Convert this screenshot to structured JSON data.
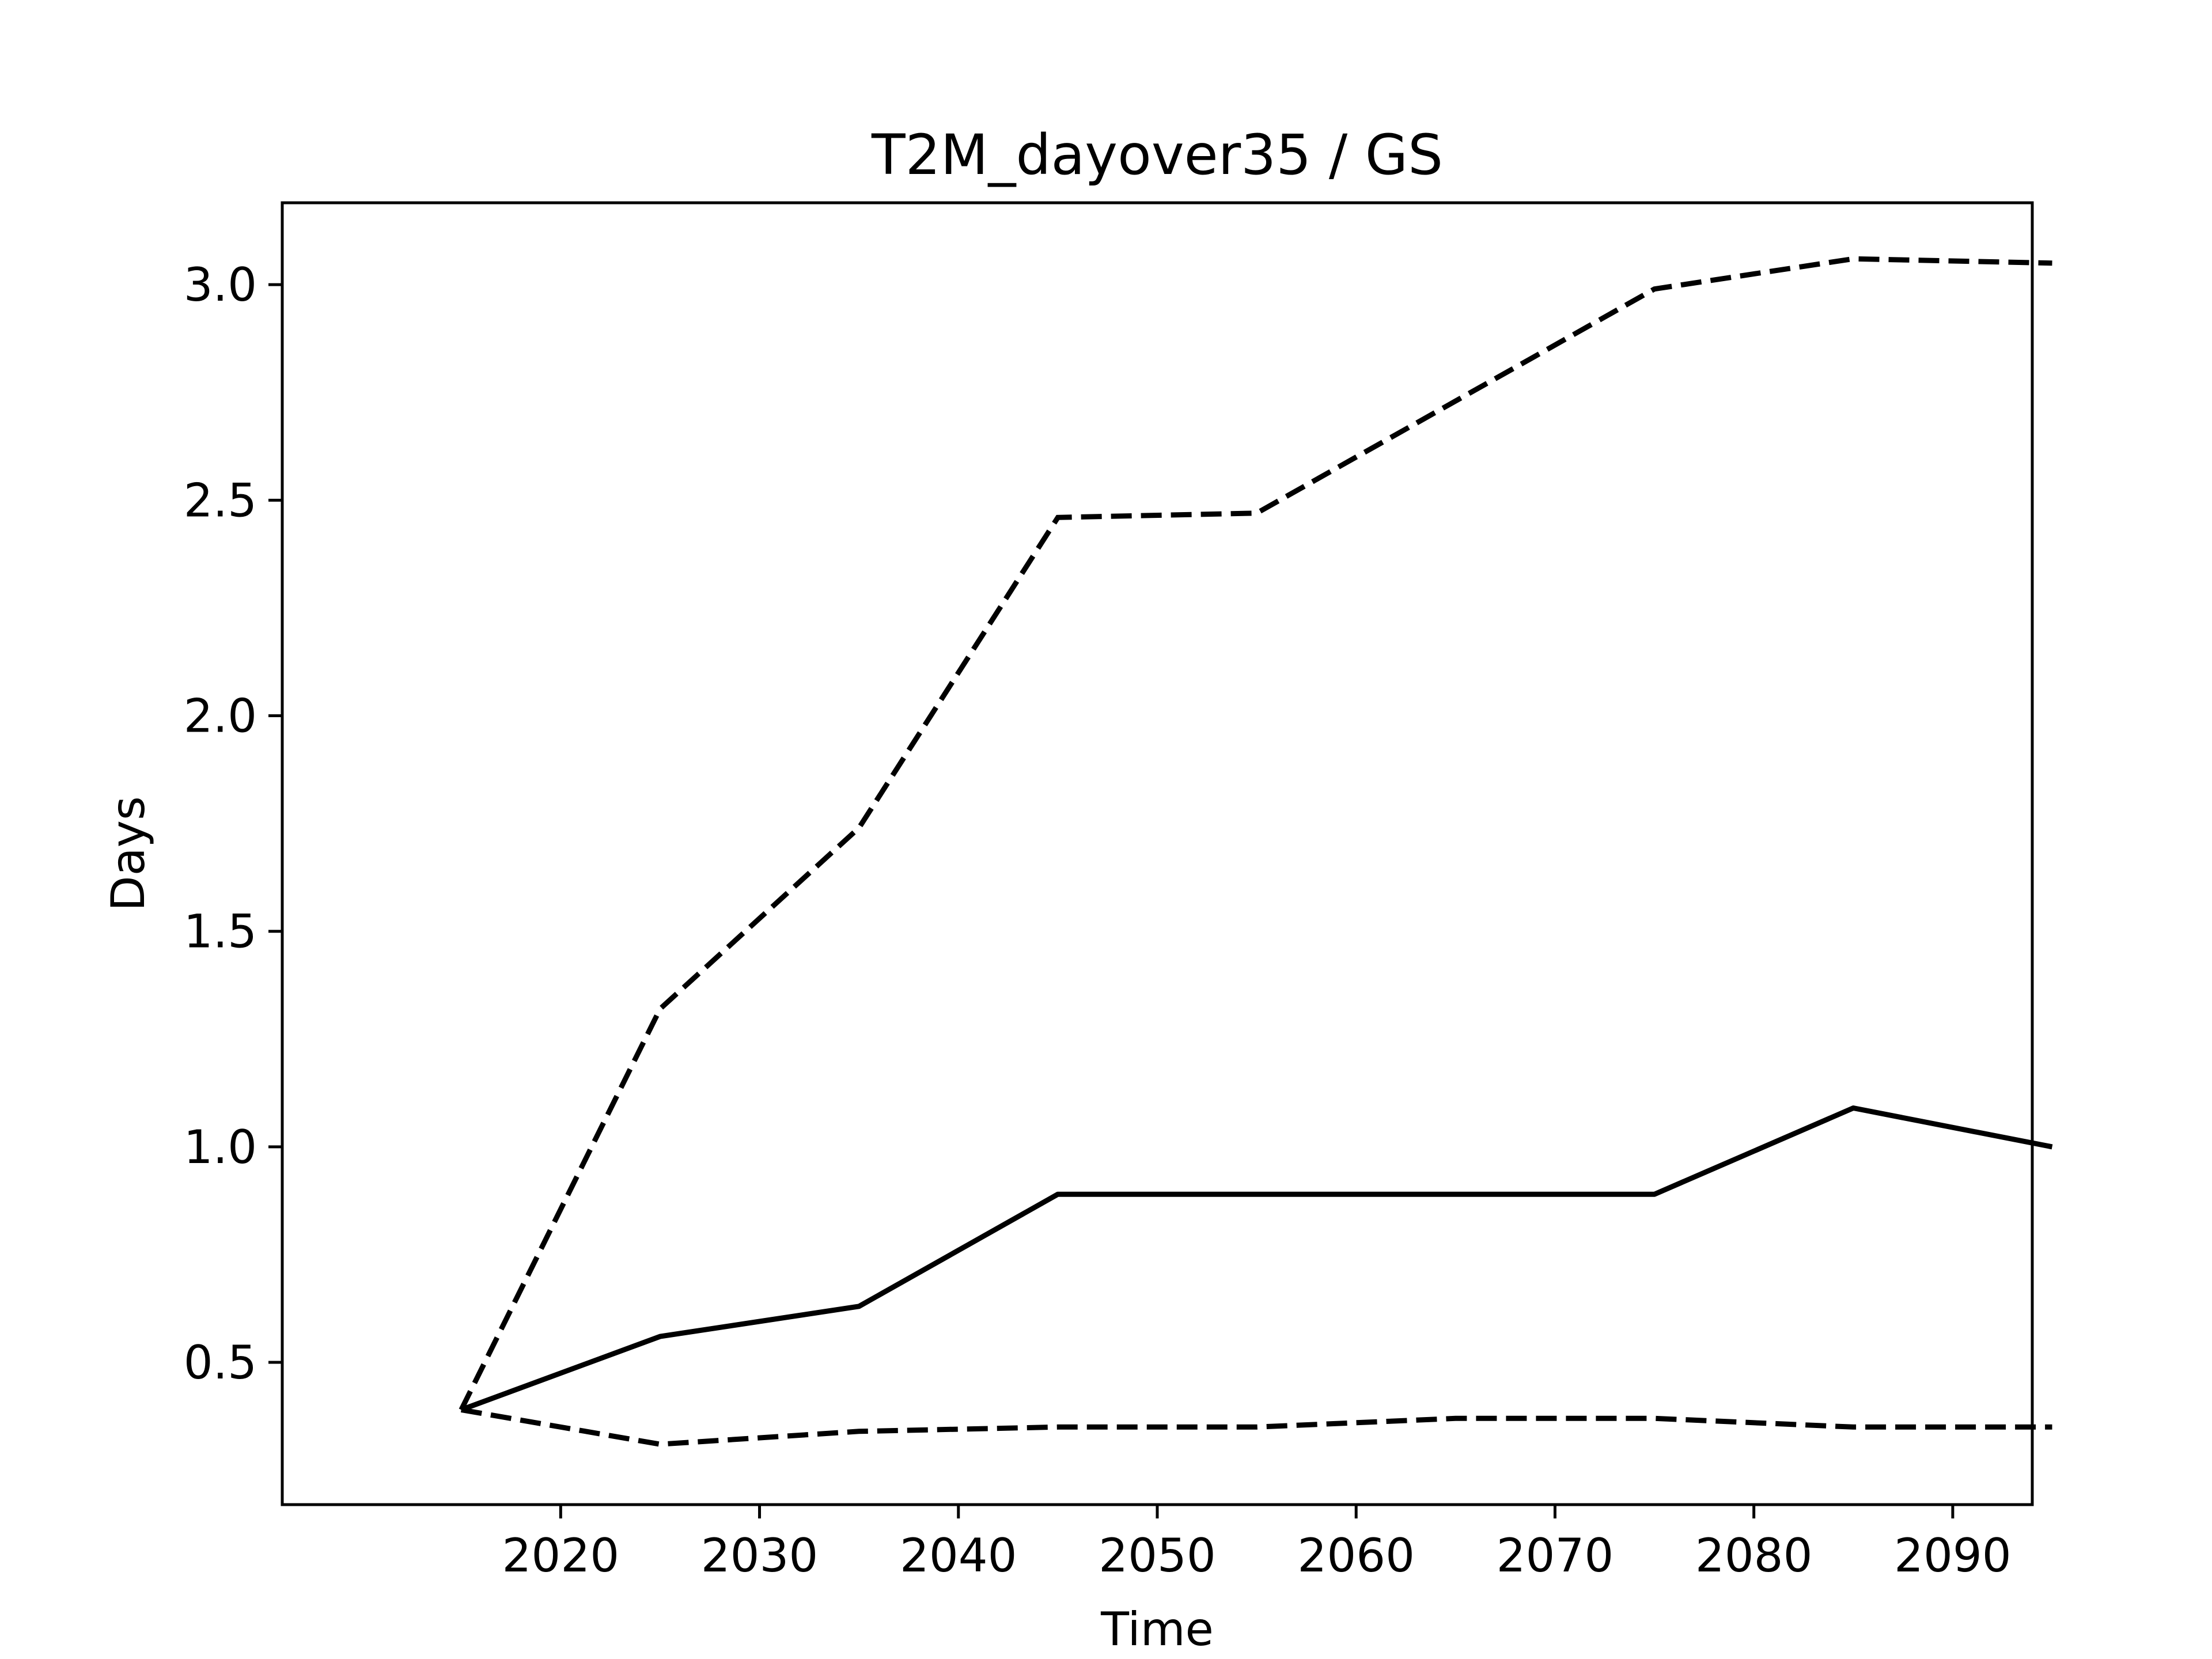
{
  "chart_data": {
    "type": "line",
    "title": "T2M_dayover35 / GS",
    "xlabel": "Time",
    "ylabel": "Days",
    "x": [
      2015,
      2025,
      2035,
      2045,
      2055,
      2065,
      2075,
      2085,
      2095
    ],
    "xlim": [
      2006,
      2094
    ],
    "ylim": [
      0.17,
      3.19
    ],
    "xticks": [
      2020,
      2030,
      2040,
      2050,
      2060,
      2070,
      2080,
      2090
    ],
    "yticks": [
      0.5,
      1.0,
      1.5,
      2.0,
      2.5,
      3.0
    ],
    "xtick_labels": [
      "2020",
      "2030",
      "2040",
      "2050",
      "2060",
      "2070",
      "2080",
      "2090"
    ],
    "ytick_labels": [
      "0.5",
      "1.0",
      "1.5",
      "2.0",
      "2.5",
      "3.0"
    ],
    "grid": false,
    "legend": "none",
    "series": [
      {
        "style": "solid",
        "color": "#000000",
        "values": [
          0.39,
          0.56,
          0.63,
          0.89,
          0.89,
          0.89,
          0.89,
          1.09,
          1.0
        ]
      },
      {
        "style": "dashed",
        "color": "#000000",
        "values": [
          0.39,
          1.32,
          1.74,
          2.46,
          2.47,
          2.73,
          2.99,
          3.06,
          3.05
        ]
      },
      {
        "style": "dashed",
        "color": "#000000",
        "values": [
          0.39,
          0.31,
          0.34,
          0.35,
          0.35,
          0.37,
          0.37,
          0.35,
          0.35
        ]
      }
    ]
  }
}
